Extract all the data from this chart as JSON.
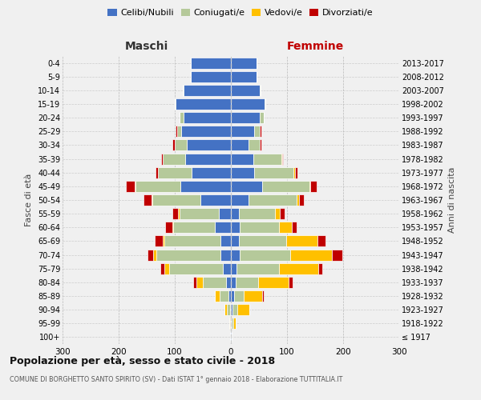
{
  "age_groups": [
    "100+",
    "95-99",
    "90-94",
    "85-89",
    "80-84",
    "75-79",
    "70-74",
    "65-69",
    "60-64",
    "55-59",
    "50-54",
    "45-49",
    "40-44",
    "35-39",
    "30-34",
    "25-29",
    "20-24",
    "15-19",
    "10-14",
    "5-9",
    "0-4"
  ],
  "birth_years": [
    "≤ 1917",
    "1918-1922",
    "1923-1927",
    "1928-1932",
    "1933-1937",
    "1938-1942",
    "1943-1947",
    "1948-1952",
    "1953-1957",
    "1958-1962",
    "1963-1967",
    "1968-1972",
    "1973-1977",
    "1978-1982",
    "1983-1987",
    "1988-1992",
    "1993-1997",
    "1998-2002",
    "2003-2007",
    "2008-2012",
    "2013-2017"
  ],
  "maschi": {
    "celibi": [
      1,
      1,
      2,
      5,
      8,
      15,
      18,
      18,
      28,
      22,
      55,
      90,
      70,
      82,
      78,
      88,
      85,
      98,
      85,
      72,
      72
    ],
    "coniugati": [
      0,
      1,
      5,
      15,
      42,
      95,
      115,
      100,
      75,
      70,
      85,
      80,
      60,
      40,
      22,
      8,
      6,
      2,
      1,
      0,
      0
    ],
    "vedovi": [
      0,
      1,
      5,
      8,
      12,
      8,
      6,
      4,
      2,
      2,
      2,
      1,
      0,
      0,
      0,
      0,
      0,
      0,
      0,
      0,
      0
    ],
    "divorziati": [
      0,
      0,
      0,
      0,
      5,
      8,
      10,
      14,
      12,
      10,
      14,
      16,
      5,
      3,
      4,
      2,
      0,
      0,
      0,
      0,
      0
    ]
  },
  "femmine": {
    "nubili": [
      1,
      2,
      3,
      5,
      8,
      10,
      15,
      14,
      16,
      14,
      32,
      55,
      42,
      40,
      32,
      42,
      52,
      60,
      52,
      45,
      45
    ],
    "coniugate": [
      0,
      2,
      8,
      18,
      40,
      75,
      90,
      85,
      70,
      65,
      85,
      85,
      70,
      50,
      20,
      10,
      6,
      2,
      1,
      0,
      0
    ],
    "vedove": [
      1,
      5,
      22,
      32,
      55,
      70,
      75,
      55,
      22,
      8,
      4,
      2,
      2,
      1,
      0,
      0,
      0,
      0,
      0,
      0,
      0
    ],
    "divorziate": [
      0,
      0,
      0,
      4,
      7,
      8,
      18,
      14,
      9,
      9,
      9,
      11,
      4,
      2,
      2,
      2,
      0,
      0,
      0,
      0,
      0
    ]
  },
  "colors": {
    "celibi_nubili": "#4472c4",
    "coniugati": "#b5c99a",
    "vedovi": "#ffc000",
    "divorziati": "#c00000"
  },
  "title": "Popolazione per età, sesso e stato civile - 2018",
  "subtitle": "COMUNE DI BORGHETTO SANTO SPIRITO (SV) - Dati ISTAT 1° gennaio 2018 - Elaborazione TUTTITALIA.IT",
  "ylabel_left": "Fasce di età",
  "ylabel_right": "Anni di nascita",
  "xlabel_left": "Maschi",
  "xlabel_right": "Femmine",
  "xlim": 300,
  "background_color": "#f0f0f0"
}
